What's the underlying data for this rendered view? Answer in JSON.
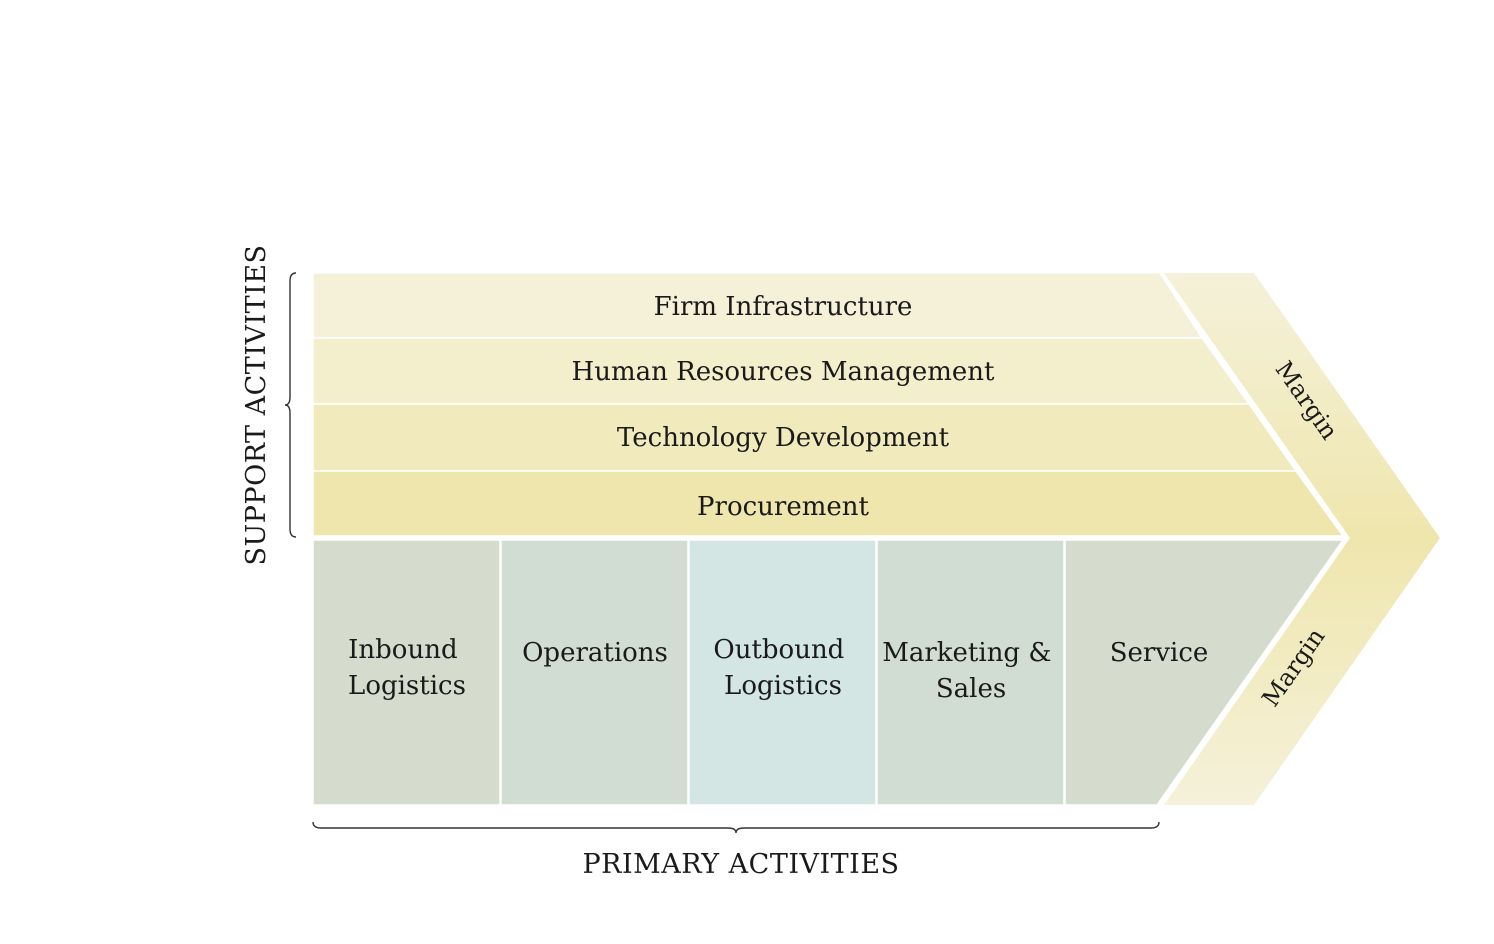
{
  "support_activities": {
    "label": "SUPPORT ACTIVITIES",
    "rows": [
      {
        "label": "Firm Infrastructure",
        "color": "#f5f1d8"
      },
      {
        "label": "Human Resources Management",
        "color": "#f3eecb"
      },
      {
        "label": "Technology Development",
        "color": "#f1eabd"
      },
      {
        "label": "Procurement",
        "color": "#efe6ae"
      }
    ]
  },
  "primary_activities": {
    "label": "PRIMARY ACTIVITIES",
    "columns": [
      {
        "lines": [
          "Inbound",
          "Logistics"
        ],
        "color": "#d5dccd"
      },
      {
        "lines": [
          "Operations"
        ],
        "color": "#d1ddd2"
      },
      {
        "lines": [
          "Outbound",
          "Logistics"
        ],
        "color": "#d3e6e3"
      },
      {
        "lines": [
          "Marketing &",
          "Sales"
        ],
        "color": "#d1ddd2"
      },
      {
        "lines": [
          "Service"
        ],
        "color": "#d5dccd"
      }
    ]
  },
  "margin": {
    "top_label": "Margin",
    "bottom_label": "Margin",
    "color_light": "#f5f1da",
    "color_dark": "#efe6ad"
  },
  "colors": {
    "divider": "#ffffff",
    "brace": "#333333",
    "text": "#1a1a1a"
  }
}
